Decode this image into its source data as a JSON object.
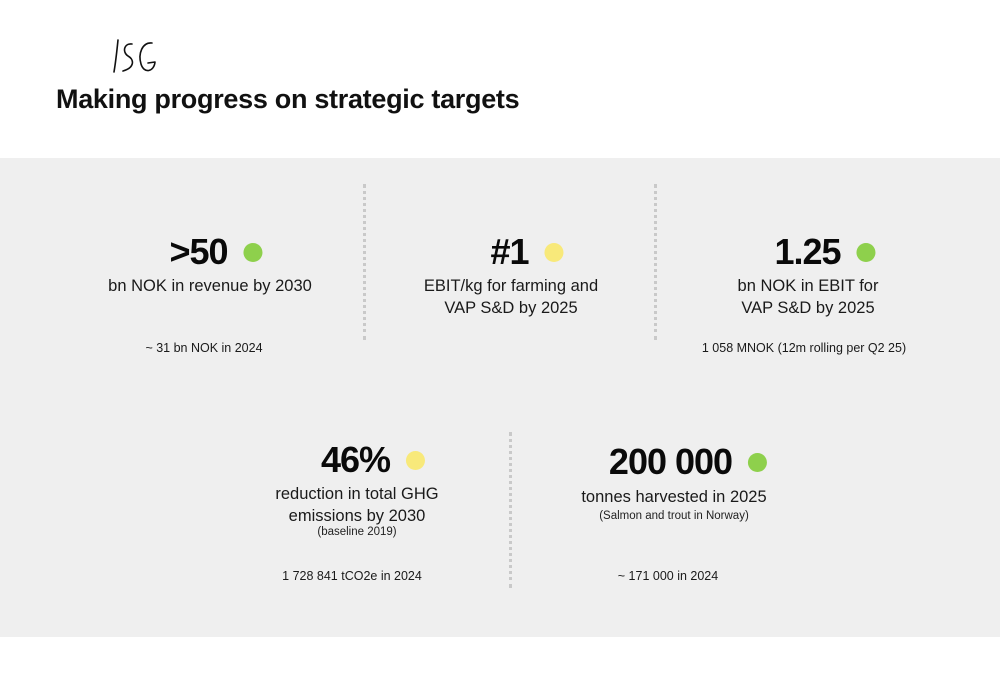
{
  "header": {
    "logo_text": "LSG",
    "title": "Making progress on strategic targets"
  },
  "colors": {
    "on_track": "#8ed04c",
    "in_progress": "#f8e97a",
    "panel_bg": "#efefef"
  },
  "targets": [
    {
      "value": ">50",
      "status": "on-track",
      "status_color": "#8ed04c",
      "description": [
        "bn NOK in revenue by 2030"
      ],
      "actual": "~ 31 bn NOK in 2024"
    },
    {
      "value": "#1",
      "status": "in-progress",
      "status_color": "#f8e97a",
      "description": [
        "EBIT/kg for farming and",
        "VAP S&D by 2025"
      ],
      "actual": ""
    },
    {
      "value": "1.25",
      "status": "on-track",
      "status_color": "#8ed04c",
      "description": [
        "bn NOK in EBIT for",
        "VAP S&D by 2025"
      ],
      "actual": "1 058 MNOK (12m rolling per Q2 25)"
    },
    {
      "value": "46%",
      "status": "in-progress",
      "status_color": "#f8e97a",
      "description": [
        "reduction in total GHG",
        "emissions by 2030"
      ],
      "note": "(baseline 2019)",
      "actual": "1 728 841 tCO2e in 2024"
    },
    {
      "value": "200 000",
      "status": "on-track",
      "status_color": "#8ed04c",
      "description": [
        "tonnes harvested in 2025"
      ],
      "note": "(Salmon and trout in Norway)",
      "actual": "~ 171 000 in 2024"
    }
  ]
}
